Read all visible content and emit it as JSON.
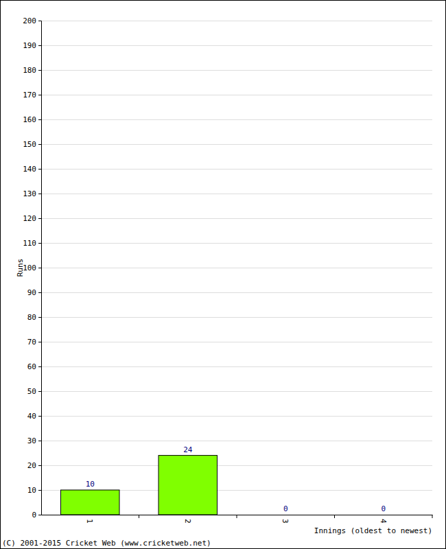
{
  "chart_data": {
    "type": "bar",
    "x_label": "Innings (oldest to newest)",
    "y_label": "Runs",
    "annotations": [
      "(C) 2001-2015 Cricket Web (www.cricketweb.net)"
    ],
    "categories": [
      "1",
      "2",
      "3",
      "4"
    ],
    "values": [
      10,
      24,
      0,
      0
    ],
    "color": "#80ff00",
    "ylim": [
      0,
      200
    ],
    "yticks": [
      0,
      10,
      20,
      30,
      40,
      50,
      60,
      70,
      80,
      90,
      100,
      110,
      120,
      130,
      140,
      150,
      160,
      170,
      180,
      190,
      200
    ],
    "grid": true,
    "data_labels": true
  }
}
